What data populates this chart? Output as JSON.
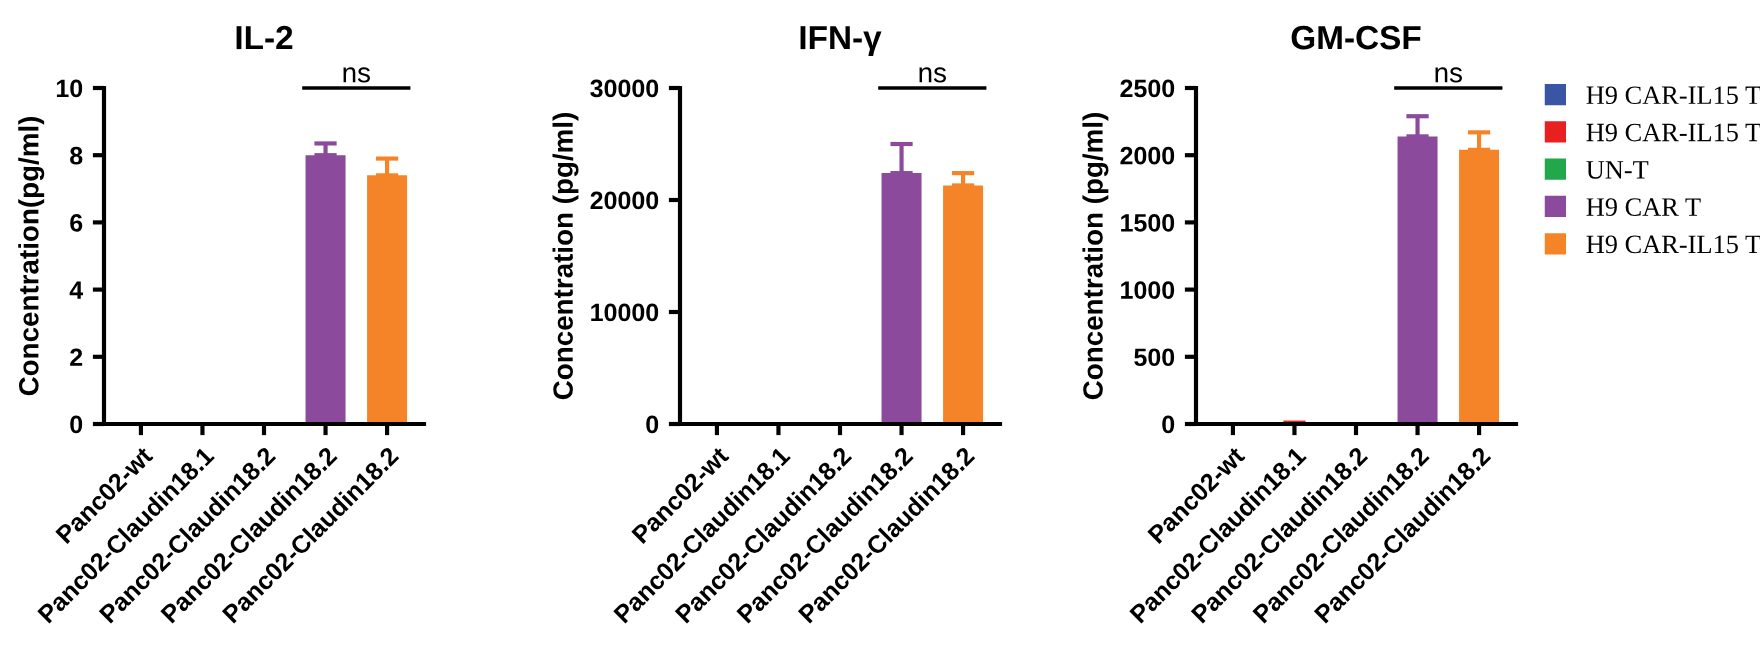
{
  "chart_data": [
    {
      "type": "bar",
      "title": "IL-2",
      "ylabel": "Concentration(pg/ml)",
      "categories": [
        "Panc02-wt",
        "Panc02-Claudin18.1",
        "Panc02-Claudin18.2",
        "Panc02-Claudin18.2",
        "Panc02-Claudin18.2"
      ],
      "ylim": [
        0,
        10
      ],
      "yticks": [
        0,
        2,
        4,
        6,
        8,
        10
      ],
      "grid": false,
      "legend": false,
      "annotations": [
        "ns"
      ],
      "series": [
        {
          "color": "#3a55a4",
          "values": [
            0,
            null,
            null,
            null,
            null
          ]
        },
        {
          "color": "#e8201f",
          "values": [
            null,
            0,
            null,
            null,
            null
          ]
        },
        {
          "color": "#22a84a",
          "values": [
            null,
            null,
            0,
            null,
            null
          ]
        },
        {
          "color": "#8b4a9c",
          "values": [
            null,
            null,
            null,
            8.0,
            null
          ],
          "errors": [
            null,
            null,
            null,
            0.35,
            null
          ]
        },
        {
          "color": "#f58428",
          "values": [
            null,
            null,
            null,
            null,
            7.4
          ],
          "errors": [
            null,
            null,
            null,
            null,
            0.5
          ]
        }
      ]
    },
    {
      "type": "bar",
      "title": "IFN-γ",
      "ylabel": "Concentration (pg/ml)",
      "categories": [
        "Panc02-wt",
        "Panc02-Claudin18.1",
        "Panc02-Claudin18.2",
        "Panc02-Claudin18.2",
        "Panc02-Claudin18.2"
      ],
      "ylim": [
        0,
        30000
      ],
      "yticks": [
        0,
        10000,
        20000,
        30000
      ],
      "grid": false,
      "legend": false,
      "annotations": [
        "ns"
      ],
      "series": [
        {
          "color": "#3a55a4",
          "values": [
            0,
            null,
            null,
            null,
            null
          ]
        },
        {
          "color": "#e8201f",
          "values": [
            null,
            0,
            null,
            null,
            null
          ]
        },
        {
          "color": "#22a84a",
          "values": [
            null,
            null,
            0,
            null,
            null
          ]
        },
        {
          "color": "#8b4a9c",
          "values": [
            null,
            null,
            null,
            22400,
            null
          ],
          "errors": [
            null,
            null,
            null,
            2600,
            null
          ]
        },
        {
          "color": "#f58428",
          "values": [
            null,
            null,
            null,
            null,
            21300
          ],
          "errors": [
            null,
            null,
            null,
            null,
            1100
          ]
        }
      ]
    },
    {
      "type": "bar",
      "title": "GM-CSF",
      "ylabel": "Concentration (pg/ml)",
      "categories": [
        "Panc02-wt",
        "Panc02-Claudin18.1",
        "Panc02-Claudin18.2",
        "Panc02-Claudin18.2",
        "Panc02-Claudin18.2"
      ],
      "ylim": [
        0,
        2500
      ],
      "yticks": [
        0,
        500,
        1000,
        1500,
        2000,
        2500
      ],
      "grid": false,
      "legend": "right",
      "annotations": [
        "ns"
      ],
      "series": [
        {
          "name": "H9 CAR-IL15 T",
          "color": "#3a55a4",
          "values": [
            0,
            null,
            null,
            null,
            null
          ]
        },
        {
          "name": "H9 CAR-IL15 T",
          "color": "#e8201f",
          "values": [
            null,
            0,
            null,
            null,
            null
          ],
          "errors": [
            null,
            10,
            null,
            null,
            null
          ]
        },
        {
          "name": "UN-T",
          "color": "#22a84a",
          "values": [
            null,
            null,
            0,
            null,
            null
          ]
        },
        {
          "name": "H9 CAR T",
          "color": "#8b4a9c",
          "values": [
            null,
            null,
            null,
            2140,
            null
          ],
          "errors": [
            null,
            null,
            null,
            150,
            null
          ]
        },
        {
          "name": "H9 CAR-IL15 T",
          "color": "#f58428",
          "values": [
            null,
            null,
            null,
            null,
            2040
          ],
          "errors": [
            null,
            null,
            null,
            null,
            130
          ]
        }
      ]
    }
  ]
}
